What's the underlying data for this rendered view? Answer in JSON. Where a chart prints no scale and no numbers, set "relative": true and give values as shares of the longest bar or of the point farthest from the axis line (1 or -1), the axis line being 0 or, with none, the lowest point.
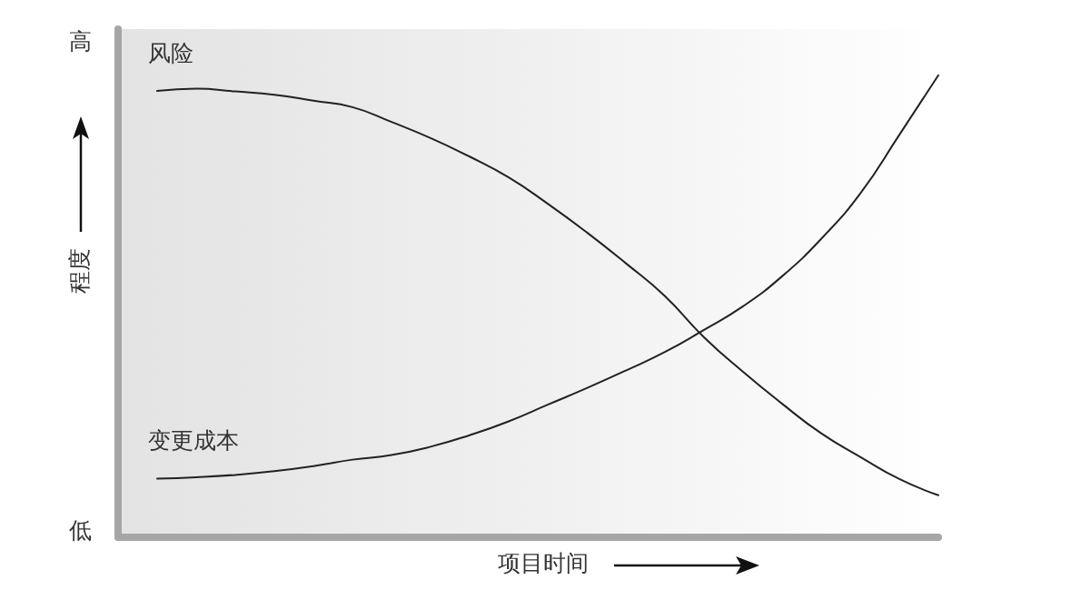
{
  "chart_data": {
    "type": "line",
    "relative": true,
    "xlabel": "项目时间",
    "ylabel": "程度",
    "annotations": [
      "高",
      "低"
    ],
    "marker": "none",
    "categories": [
      null,
      null,
      null,
      null,
      null,
      null,
      null,
      null,
      null,
      null,
      null,
      null,
      null,
      null,
      null,
      null,
      null,
      null,
      null,
      null,
      null,
      null
    ],
    "series": [
      {
        "name": "风险",
        "color": "#222222",
        "values": [
          null,
          0.966,
          0.971,
          0.965,
          0.958,
          0.945,
          0.931,
          0.899,
          0.864,
          0.824,
          0.779,
          0.722,
          0.66,
          0.593,
          0.522,
          0.433,
          0.358,
          0.289,
          0.225,
          0.174,
          0.126,
          0.091
        ]
      },
      {
        "name": "变更成本",
        "color": "#222222",
        "values": [
          null,
          0.127,
          0.13,
          0.135,
          0.143,
          0.154,
          0.168,
          0.178,
          0.196,
          0.221,
          0.251,
          0.287,
          0.323,
          0.361,
          0.401,
          0.449,
          0.5,
          0.565,
          0.646,
          0.744,
          0.871,
          1.0
        ]
      }
    ]
  }
}
